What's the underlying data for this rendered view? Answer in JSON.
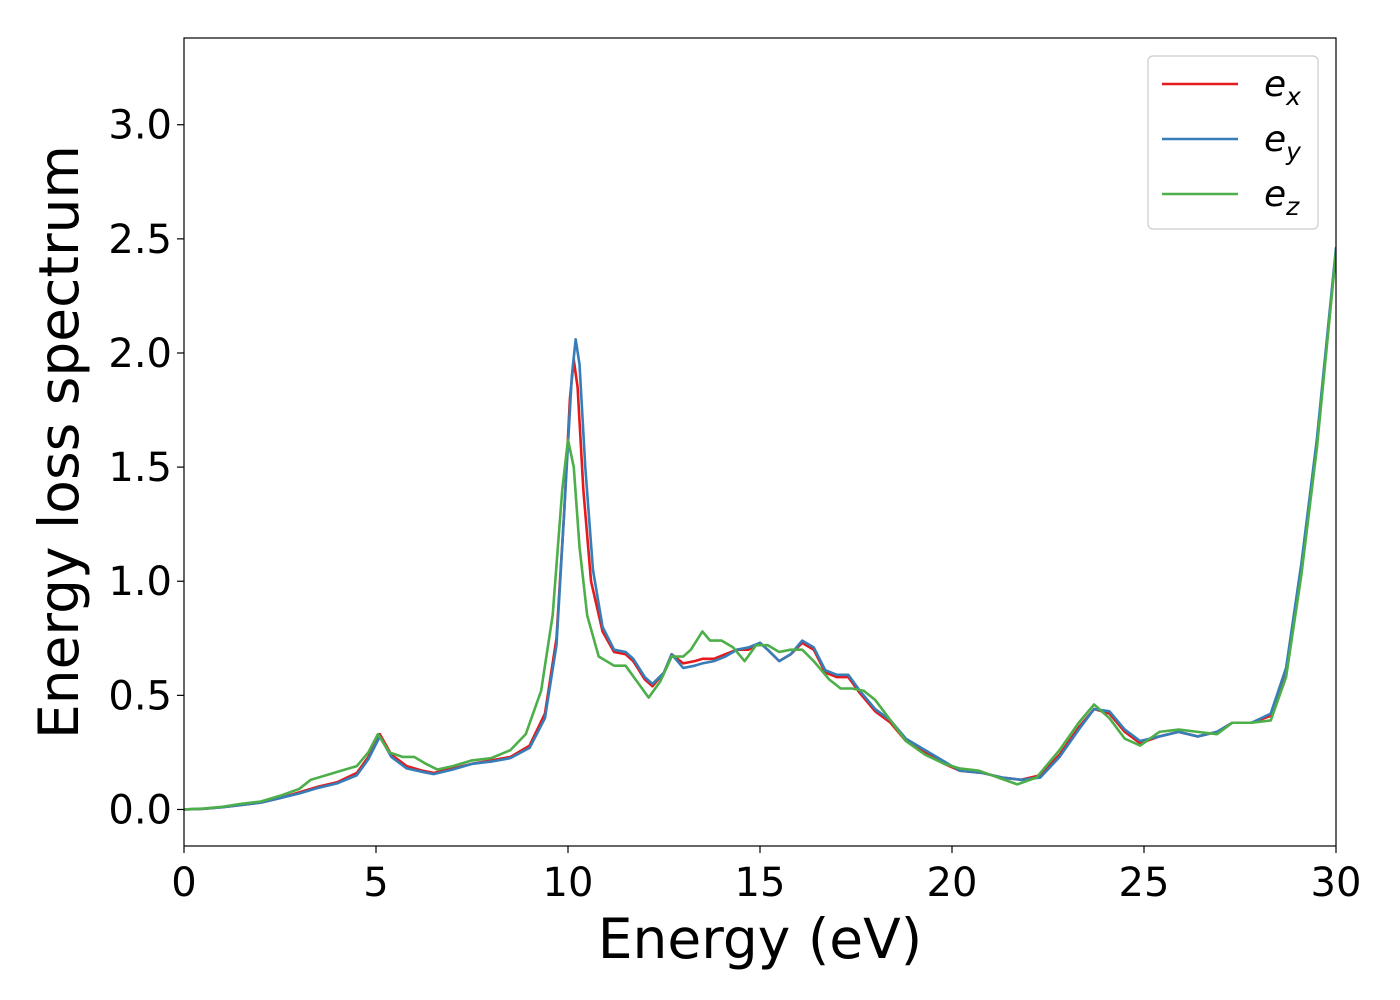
{
  "chart_data": {
    "type": "line",
    "xlabel": "Energy (eV)",
    "ylabel": "Energy loss spectrum",
    "xlim": [
      0,
      30
    ],
    "ylim": [
      -0.16,
      3.38
    ],
    "xticks": [
      0,
      5,
      10,
      15,
      20,
      25,
      30
    ],
    "xtick_labels": [
      "0",
      "5",
      "10",
      "15",
      "20",
      "25",
      "30"
    ],
    "yticks": [
      0.0,
      0.5,
      1.0,
      1.5,
      2.0,
      2.5,
      3.0
    ],
    "ytick_labels": [
      "0.0",
      "0.5",
      "1.0",
      "1.5",
      "2.0",
      "2.5",
      "3.0"
    ],
    "grid": false,
    "legend": {
      "position": "top-right",
      "entries": [
        {
          "base": "e",
          "sub": "x"
        },
        {
          "base": "e",
          "sub": "y"
        },
        {
          "base": "e",
          "sub": "z"
        }
      ]
    },
    "series": [
      {
        "color": "#e41a1c",
        "points": [
          [
            0,
            0
          ],
          [
            0.5,
            0.003
          ],
          [
            1,
            0.01
          ],
          [
            1.5,
            0.02
          ],
          [
            2,
            0.03
          ],
          [
            2.5,
            0.05
          ],
          [
            3,
            0.075
          ],
          [
            3.5,
            0.1
          ],
          [
            4,
            0.12
          ],
          [
            4.5,
            0.16
          ],
          [
            4.8,
            0.23
          ],
          [
            5.1,
            0.33
          ],
          [
            5.4,
            0.24
          ],
          [
            5.8,
            0.19
          ],
          [
            6.2,
            0.17
          ],
          [
            6.5,
            0.16
          ],
          [
            7,
            0.18
          ],
          [
            7.5,
            0.2
          ],
          [
            8,
            0.215
          ],
          [
            8.5,
            0.23
          ],
          [
            9,
            0.28
          ],
          [
            9.4,
            0.42
          ],
          [
            9.7,
            0.75
          ],
          [
            9.9,
            1.3
          ],
          [
            10.05,
            1.8
          ],
          [
            10.15,
            1.97
          ],
          [
            10.25,
            1.85
          ],
          [
            10.4,
            1.4
          ],
          [
            10.6,
            1.0
          ],
          [
            10.9,
            0.78
          ],
          [
            11.2,
            0.69
          ],
          [
            11.5,
            0.68
          ],
          [
            11.7,
            0.65
          ],
          [
            12,
            0.57
          ],
          [
            12.2,
            0.54
          ],
          [
            12.5,
            0.6
          ],
          [
            12.7,
            0.68
          ],
          [
            13,
            0.64
          ],
          [
            13.3,
            0.65
          ],
          [
            13.5,
            0.66
          ],
          [
            13.8,
            0.66
          ],
          [
            14.1,
            0.68
          ],
          [
            14.4,
            0.7
          ],
          [
            14.7,
            0.7
          ],
          [
            15,
            0.73
          ],
          [
            15.2,
            0.7
          ],
          [
            15.5,
            0.65
          ],
          [
            15.8,
            0.68
          ],
          [
            16.1,
            0.73
          ],
          [
            16.4,
            0.7
          ],
          [
            16.7,
            0.6
          ],
          [
            17,
            0.58
          ],
          [
            17.3,
            0.58
          ],
          [
            17.6,
            0.51
          ],
          [
            18,
            0.43
          ],
          [
            18.4,
            0.38
          ],
          [
            18.8,
            0.3
          ],
          [
            19.3,
            0.25
          ],
          [
            19.8,
            0.2
          ],
          [
            20.2,
            0.17
          ],
          [
            20.8,
            0.16
          ],
          [
            21.3,
            0.14
          ],
          [
            21.8,
            0.13
          ],
          [
            22.3,
            0.15
          ],
          [
            22.8,
            0.24
          ],
          [
            23.3,
            0.36
          ],
          [
            23.7,
            0.44
          ],
          [
            24.1,
            0.42
          ],
          [
            24.5,
            0.34
          ],
          [
            24.9,
            0.29
          ],
          [
            25.4,
            0.32
          ],
          [
            25.9,
            0.34
          ],
          [
            26.4,
            0.32
          ],
          [
            26.9,
            0.34
          ],
          [
            27.3,
            0.38
          ],
          [
            27.8,
            0.38
          ],
          [
            28.3,
            0.41
          ],
          [
            28.7,
            0.6
          ],
          [
            29.1,
            1.05
          ],
          [
            29.5,
            1.6
          ],
          [
            30,
            2.45
          ]
        ]
      },
      {
        "color": "#377eb8",
        "points": [
          [
            0,
            0
          ],
          [
            0.5,
            0.003
          ],
          [
            1,
            0.01
          ],
          [
            1.5,
            0.02
          ],
          [
            2,
            0.03
          ],
          [
            2.5,
            0.05
          ],
          [
            3,
            0.07
          ],
          [
            3.5,
            0.095
          ],
          [
            4,
            0.115
          ],
          [
            4.5,
            0.15
          ],
          [
            4.8,
            0.22
          ],
          [
            5.1,
            0.32
          ],
          [
            5.4,
            0.23
          ],
          [
            5.8,
            0.18
          ],
          [
            6.2,
            0.165
          ],
          [
            6.5,
            0.155
          ],
          [
            7,
            0.175
          ],
          [
            7.5,
            0.2
          ],
          [
            8,
            0.21
          ],
          [
            8.5,
            0.225
          ],
          [
            9,
            0.27
          ],
          [
            9.4,
            0.4
          ],
          [
            9.7,
            0.72
          ],
          [
            9.9,
            1.3
          ],
          [
            10.1,
            1.9
          ],
          [
            10.2,
            2.06
          ],
          [
            10.3,
            1.95
          ],
          [
            10.45,
            1.5
          ],
          [
            10.65,
            1.05
          ],
          [
            10.9,
            0.8
          ],
          [
            11.2,
            0.7
          ],
          [
            11.5,
            0.69
          ],
          [
            11.7,
            0.66
          ],
          [
            12,
            0.58
          ],
          [
            12.2,
            0.55
          ],
          [
            12.5,
            0.6
          ],
          [
            12.7,
            0.68
          ],
          [
            13,
            0.62
          ],
          [
            13.3,
            0.63
          ],
          [
            13.5,
            0.64
          ],
          [
            13.8,
            0.65
          ],
          [
            14.1,
            0.67
          ],
          [
            14.4,
            0.7
          ],
          [
            14.7,
            0.71
          ],
          [
            15,
            0.73
          ],
          [
            15.2,
            0.7
          ],
          [
            15.5,
            0.65
          ],
          [
            15.8,
            0.68
          ],
          [
            16.1,
            0.74
          ],
          [
            16.4,
            0.71
          ],
          [
            16.7,
            0.61
          ],
          [
            17,
            0.59
          ],
          [
            17.3,
            0.59
          ],
          [
            17.6,
            0.52
          ],
          [
            18,
            0.44
          ],
          [
            18.4,
            0.39
          ],
          [
            18.8,
            0.31
          ],
          [
            19.3,
            0.26
          ],
          [
            19.8,
            0.21
          ],
          [
            20.2,
            0.17
          ],
          [
            20.8,
            0.16
          ],
          [
            21.3,
            0.14
          ],
          [
            21.8,
            0.13
          ],
          [
            22.3,
            0.14
          ],
          [
            22.8,
            0.23
          ],
          [
            23.3,
            0.35
          ],
          [
            23.7,
            0.44
          ],
          [
            24.1,
            0.43
          ],
          [
            24.5,
            0.35
          ],
          [
            24.9,
            0.3
          ],
          [
            25.4,
            0.32
          ],
          [
            25.9,
            0.34
          ],
          [
            26.4,
            0.32
          ],
          [
            26.9,
            0.34
          ],
          [
            27.3,
            0.38
          ],
          [
            27.8,
            0.38
          ],
          [
            28.3,
            0.42
          ],
          [
            28.7,
            0.62
          ],
          [
            29.1,
            1.08
          ],
          [
            29.5,
            1.62
          ],
          [
            30,
            2.46
          ]
        ]
      },
      {
        "color": "#4daf4a",
        "points": [
          [
            0,
            0
          ],
          [
            0.5,
            0.004
          ],
          [
            1,
            0.012
          ],
          [
            1.5,
            0.025
          ],
          [
            2,
            0.035
          ],
          [
            2.5,
            0.06
          ],
          [
            3,
            0.09
          ],
          [
            3.3,
            0.13
          ],
          [
            3.7,
            0.15
          ],
          [
            4.1,
            0.17
          ],
          [
            4.5,
            0.19
          ],
          [
            4.8,
            0.25
          ],
          [
            5.05,
            0.33
          ],
          [
            5.35,
            0.25
          ],
          [
            5.7,
            0.23
          ],
          [
            6,
            0.23
          ],
          [
            6.3,
            0.2
          ],
          [
            6.6,
            0.175
          ],
          [
            7,
            0.19
          ],
          [
            7.5,
            0.215
          ],
          [
            8,
            0.225
          ],
          [
            8.5,
            0.26
          ],
          [
            8.9,
            0.33
          ],
          [
            9.3,
            0.52
          ],
          [
            9.6,
            0.85
          ],
          [
            9.85,
            1.4
          ],
          [
            10,
            1.62
          ],
          [
            10.15,
            1.5
          ],
          [
            10.3,
            1.15
          ],
          [
            10.5,
            0.85
          ],
          [
            10.8,
            0.67
          ],
          [
            11.2,
            0.63
          ],
          [
            11.5,
            0.63
          ],
          [
            11.8,
            0.56
          ],
          [
            12.1,
            0.49
          ],
          [
            12.4,
            0.56
          ],
          [
            12.7,
            0.67
          ],
          [
            13,
            0.67
          ],
          [
            13.2,
            0.7
          ],
          [
            13.5,
            0.78
          ],
          [
            13.7,
            0.74
          ],
          [
            14,
            0.74
          ],
          [
            14.3,
            0.71
          ],
          [
            14.6,
            0.65
          ],
          [
            14.9,
            0.72
          ],
          [
            15.2,
            0.72
          ],
          [
            15.5,
            0.69
          ],
          [
            15.8,
            0.7
          ],
          [
            16.1,
            0.7
          ],
          [
            16.4,
            0.65
          ],
          [
            16.8,
            0.57
          ],
          [
            17.1,
            0.53
          ],
          [
            17.4,
            0.53
          ],
          [
            17.7,
            0.52
          ],
          [
            18,
            0.48
          ],
          [
            18.4,
            0.39
          ],
          [
            18.8,
            0.3
          ],
          [
            19.3,
            0.24
          ],
          [
            19.8,
            0.2
          ],
          [
            20.2,
            0.18
          ],
          [
            20.7,
            0.17
          ],
          [
            21.2,
            0.14
          ],
          [
            21.7,
            0.11
          ],
          [
            22.2,
            0.14
          ],
          [
            22.8,
            0.26
          ],
          [
            23.3,
            0.38
          ],
          [
            23.7,
            0.46
          ],
          [
            24.1,
            0.4
          ],
          [
            24.5,
            0.31
          ],
          [
            24.9,
            0.28
          ],
          [
            25.4,
            0.34
          ],
          [
            25.9,
            0.35
          ],
          [
            26.4,
            0.34
          ],
          [
            26.9,
            0.33
          ],
          [
            27.3,
            0.38
          ],
          [
            27.8,
            0.38
          ],
          [
            28.3,
            0.39
          ],
          [
            28.7,
            0.58
          ],
          [
            29.1,
            1.03
          ],
          [
            29.5,
            1.58
          ],
          [
            30,
            2.44
          ]
        ]
      }
    ]
  }
}
